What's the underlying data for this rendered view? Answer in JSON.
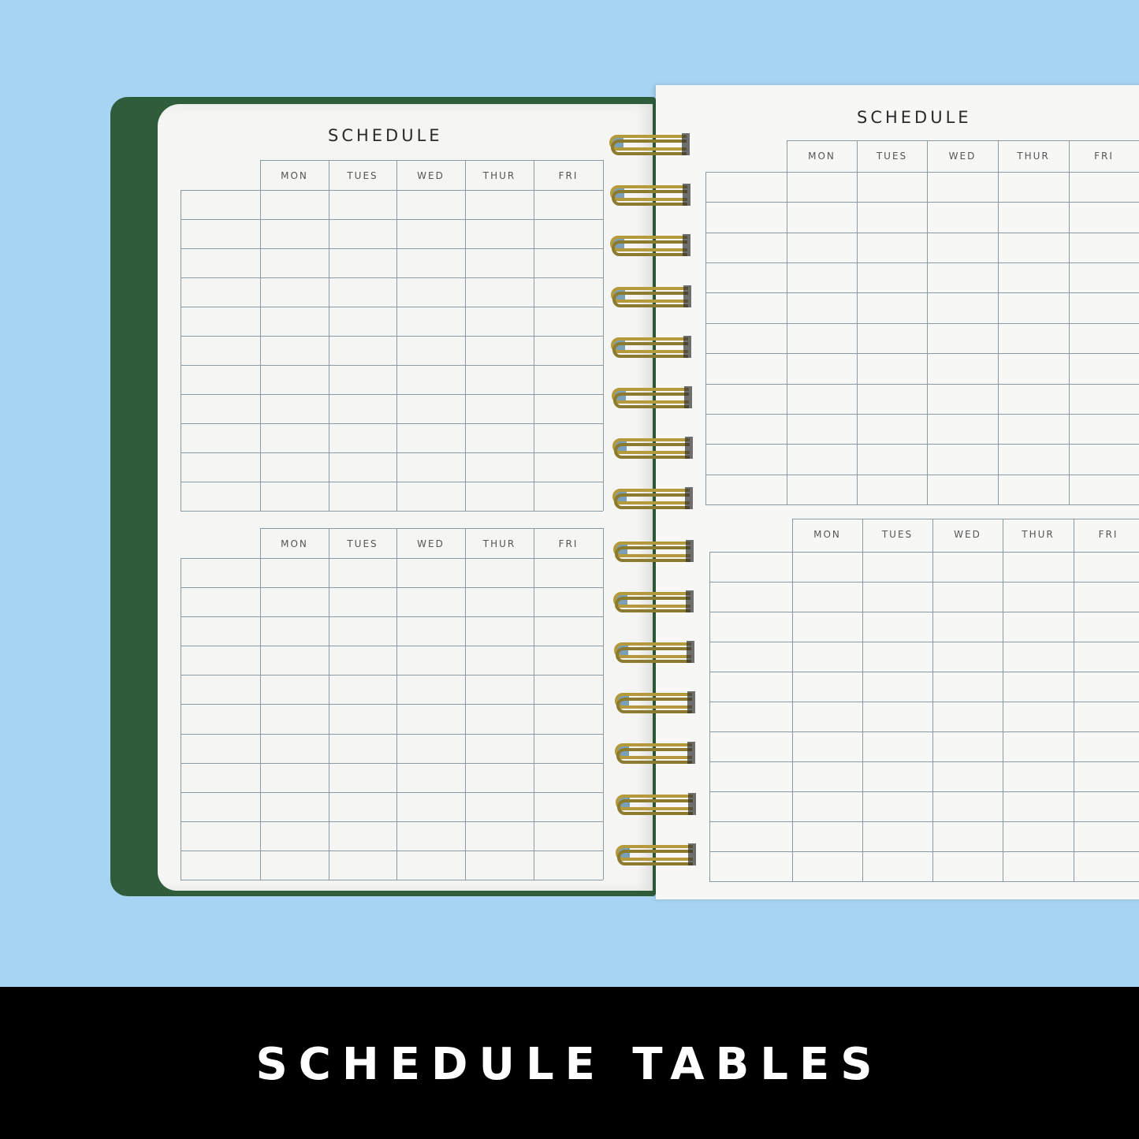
{
  "photo": {
    "background_color": "#a8d4f3",
    "cover_color": "#2f5d3b",
    "spiral_color": "#b59a3c",
    "left_page": {
      "title": "SCHEDULE",
      "tables": [
        {
          "days": [
            "MON",
            "TUES",
            "WED",
            "THUR",
            "FRI"
          ]
        },
        {
          "days": [
            "MON",
            "TUES",
            "WED",
            "THUR",
            "FRI"
          ]
        }
      ]
    },
    "right_page": {
      "title": "SCHEDULE",
      "tables": [
        {
          "days": [
            "MON",
            "TUES",
            "WED",
            "THUR",
            "FRI"
          ]
        },
        {
          "days": [
            "MON",
            "TUES",
            "WED",
            "THUR",
            "FRI"
          ]
        }
      ]
    }
  },
  "banner": {
    "text": "SCHEDULE TABLES"
  }
}
